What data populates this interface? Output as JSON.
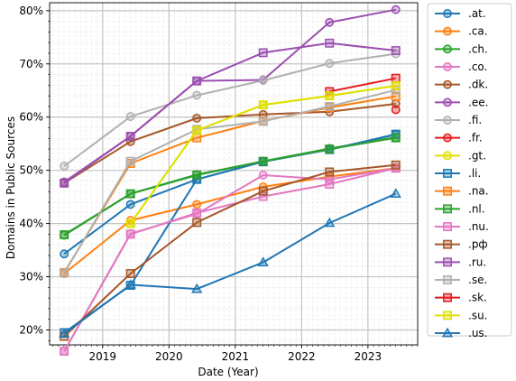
{
  "chart_data": {
    "type": "line",
    "xlabel": "Date (Year)",
    "ylabel": "Domains in Public Sources",
    "xlim": [
      2018.2,
      2023.75
    ],
    "ylim": [
      17.2,
      81.5
    ],
    "x_ticks": [
      2019,
      2020,
      2021,
      2022,
      2023
    ],
    "x_tick_labels": [
      "2019",
      "2020",
      "2021",
      "2022",
      "2023"
    ],
    "y_ticks": [
      20,
      30,
      40,
      50,
      60,
      70,
      80
    ],
    "y_tick_labels": [
      "20%",
      "30%",
      "40%",
      "50%",
      "60%",
      "70%",
      "80%"
    ],
    "grid": true,
    "legend_position": "outside-right",
    "series": [
      {
        "name": ".at.",
        "color": "#1f77b4",
        "marker": "circle",
        "x": [
          2018.42,
          2019.42,
          2020.42,
          2021.42,
          2022.42,
          2023.42
        ],
        "y": [
          34.3,
          43.6,
          48.3,
          51.7,
          53.9,
          56.7
        ]
      },
      {
        "name": ".ca.",
        "color": "#ff7f0e",
        "marker": "circle",
        "x": [
          2018.42,
          2019.42,
          2020.42,
          2021.42,
          2022.42,
          2023.42
        ],
        "y": [
          30.6,
          40.6,
          43.6,
          46.9,
          48.8,
          50.4
        ]
      },
      {
        "name": ".ch.",
        "color": "#2ca02c",
        "marker": "circle",
        "x": [
          2018.42,
          2019.42,
          2020.42,
          2021.42,
          2022.42,
          2023.42
        ],
        "y": [
          37.8,
          45.6,
          49.2,
          51.7,
          54.1,
          56.2
        ]
      },
      {
        "name": ".co.",
        "color": "#e377c2",
        "marker": "circle",
        "x": [
          2018.42,
          2019.42,
          2020.42,
          2021.42,
          2022.42,
          2023.42
        ],
        "y": [
          16.0,
          38.1,
          41.8,
          49.1,
          48.3,
          50.4
        ]
      },
      {
        "name": ".dk.",
        "color": "#a65628",
        "marker": "circle",
        "x": [
          2018.42,
          2019.42,
          2020.42,
          2021.42,
          2022.42,
          2023.42
        ],
        "y": [
          47.6,
          55.4,
          59.8,
          60.5,
          61.0,
          62.5
        ]
      },
      {
        "name": ".ee.",
        "color": "#9b4fb0",
        "marker": "circle",
        "x": [
          2018.42,
          2019.42,
          2020.42,
          2021.42,
          2022.42,
          2023.42
        ],
        "y": [
          47.8,
          56.4,
          66.8,
          67.0,
          77.8,
          80.2
        ]
      },
      {
        "name": ".fi.",
        "color": "#b0b0b0",
        "marker": "circle",
        "x": [
          2018.42,
          2019.42,
          2020.42,
          2021.42,
          2022.42,
          2023.42
        ],
        "y": [
          50.8,
          60.1,
          64.1,
          66.9,
          70.1,
          71.9
        ]
      },
      {
        "name": ".fr.",
        "color": "#e41a1c",
        "marker": "circle",
        "x": [
          2023.42
        ],
        "y": [
          61.4
        ]
      },
      {
        "name": ".gt.",
        "color": "#e0e000",
        "marker": "circle",
        "x": [
          2019.42,
          2020.42,
          2021.42,
          2022.42,
          2023.42
        ],
        "y": [
          40.0,
          57.5,
          62.3,
          64.0,
          65.9
        ]
      },
      {
        "name": ".li.",
        "color": "#1f77b4",
        "marker": "square",
        "x": [
          2018.42,
          2019.42,
          2020.42,
          2021.42,
          2022.42,
          2023.42
        ],
        "y": [
          19.5,
          28.4,
          48.3,
          51.6,
          53.9,
          56.8
        ]
      },
      {
        "name": ".na.",
        "color": "#ff7f0e",
        "marker": "square",
        "x": [
          2018.42,
          2019.42,
          2020.42,
          2021.42,
          2022.42,
          2023.42
        ],
        "y": [
          30.8,
          51.3,
          56.1,
          59.3,
          61.8,
          63.9
        ]
      },
      {
        "name": ".nl.",
        "color": "#2ca02c",
        "marker": "square",
        "x": [
          2018.42,
          2019.42,
          2020.42,
          2021.42,
          2022.42,
          2023.42
        ],
        "y": [
          37.9,
          45.6,
          49.1,
          51.7,
          54.0,
          56.1
        ]
      },
      {
        "name": ".nu.",
        "color": "#e377c2",
        "marker": "square",
        "x": [
          2018.42,
          2019.42,
          2020.42,
          2021.42,
          2022.42,
          2023.42
        ],
        "y": [
          16.0,
          38.0,
          42.0,
          45.1,
          47.4,
          50.4
        ]
      },
      {
        "name": ".pф",
        "color": "#a65628",
        "marker": "square",
        "x": [
          2018.42,
          2019.42,
          2020.42,
          2021.42,
          2022.42,
          2023.42
        ],
        "y": [
          18.8,
          30.6,
          40.2,
          46.1,
          49.7,
          51.0
        ]
      },
      {
        "name": ".ru.",
        "color": "#9b4fb0",
        "marker": "square",
        "x": [
          2018.42,
          2019.42,
          2020.42,
          2021.42,
          2022.42,
          2023.42
        ],
        "y": [
          47.6,
          56.4,
          66.8,
          72.1,
          73.9,
          72.5
        ]
      },
      {
        "name": ".se.",
        "color": "#b0b0b0",
        "marker": "square",
        "x": [
          2018.42,
          2019.42,
          2020.42,
          2021.42,
          2022.42,
          2023.42
        ],
        "y": [
          30.7,
          51.7,
          57.7,
          59.2,
          62.0,
          65.1
        ]
      },
      {
        "name": ".sk.",
        "color": "#e41a1c",
        "marker": "square",
        "x": [
          2022.42,
          2023.42
        ],
        "y": [
          64.8,
          67.3
        ]
      },
      {
        "name": ".su.",
        "color": "#e0e000",
        "marker": "square",
        "x": [
          2019.42,
          2020.42,
          2021.42,
          2022.42,
          2023.42
        ],
        "y": [
          40.0,
          57.5,
          62.3,
          64.0,
          65.9
        ]
      },
      {
        "name": ".us.",
        "color": "#1f77b4",
        "marker": "triangle",
        "x": [
          2018.42,
          2019.42,
          2020.42,
          2021.42,
          2022.42,
          2023.42
        ],
        "y": [
          19.3,
          28.5,
          27.7,
          32.7,
          40.1,
          45.6
        ]
      }
    ]
  }
}
